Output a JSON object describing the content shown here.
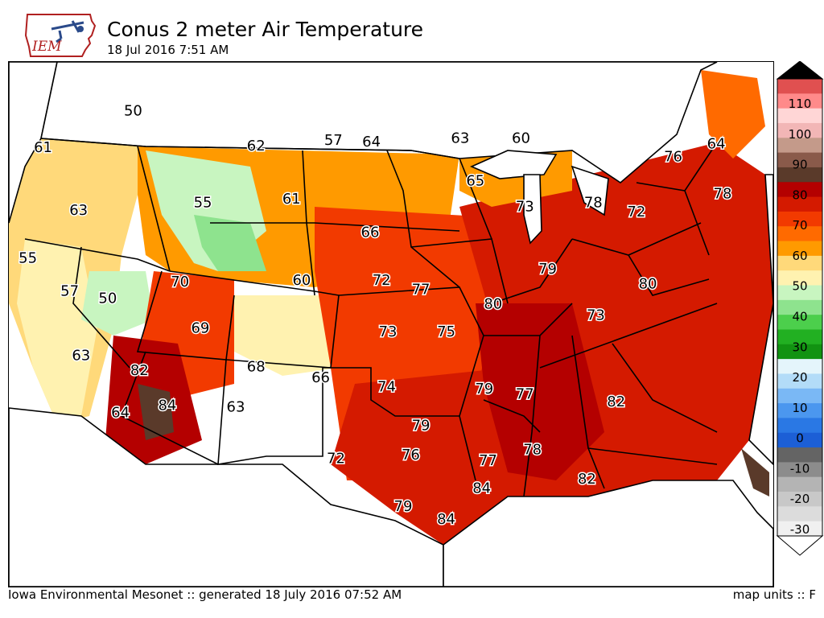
{
  "header": {
    "logo_text": "IEM",
    "title": "Conus 2 meter Air Temperature",
    "subtitle": "18 Jul 2016 7:51 AM"
  },
  "footer": {
    "credit": "Iowa Environmental Mesonet :: generated 18 July 2016 07:52 AM",
    "units": "map units :: F"
  },
  "colors": {
    "ocean_land": "#ffffff",
    "boundary": "#000000"
  },
  "legend": {
    "units": "F",
    "ticks": [
      "110",
      "100",
      "90",
      "80",
      "70",
      "60",
      "50",
      "40",
      "30",
      "20",
      "10",
      "0",
      "-10",
      "-20",
      "-30"
    ],
    "bands": [
      {
        "value": "below -30",
        "color": "#ffffff"
      },
      {
        "value": "-30",
        "color": "#f0f0f0"
      },
      {
        "value": "-25",
        "color": "#dcdcdc"
      },
      {
        "value": "-20",
        "color": "#c8c8c8"
      },
      {
        "value": "-15",
        "color": "#b4b4b4"
      },
      {
        "value": "-10",
        "color": "#8c8c8c"
      },
      {
        "value": "-5",
        "color": "#646464"
      },
      {
        "value": "0",
        "color": "#1c5fd6"
      },
      {
        "value": "5",
        "color": "#2a78e4"
      },
      {
        "value": "10",
        "color": "#4b97ef"
      },
      {
        "value": "15",
        "color": "#7ab8f5"
      },
      {
        "value": "20",
        "color": "#b3dcf8"
      },
      {
        "value": "25",
        "color": "#e4f5fb"
      },
      {
        "value": "30",
        "color": "#129312"
      },
      {
        "value": "35",
        "color": "#22b022"
      },
      {
        "value": "40",
        "color": "#4ccf4c"
      },
      {
        "value": "45",
        "color": "#8ee38e"
      },
      {
        "value": "50",
        "color": "#c8f5c0"
      },
      {
        "value": "55",
        "color": "#fff2b0"
      },
      {
        "value": "60",
        "color": "#ffd97a"
      },
      {
        "value": "65",
        "color": "#ff9a00"
      },
      {
        "value": "70",
        "color": "#ff6a00"
      },
      {
        "value": "75",
        "color": "#f23a00"
      },
      {
        "value": "80",
        "color": "#d41a00"
      },
      {
        "value": "85",
        "color": "#b40000"
      },
      {
        "value": "90",
        "color": "#5a3a2a"
      },
      {
        "value": "95",
        "color": "#8a5a4a"
      },
      {
        "value": "100",
        "color": "#c49a8a"
      },
      {
        "value": "105",
        "color": "#f2b6b6"
      },
      {
        "value": "110",
        "color": "#ffd6d6"
      },
      {
        "value": "115",
        "color": "#ff8a8a"
      },
      {
        "value": "120",
        "color": "#e05050"
      },
      {
        "value": "above",
        "color": "#000000"
      }
    ]
  },
  "regions": [
    {
      "name": "pacific-northwest",
      "temp_f": 61,
      "color": "#ffd97a"
    },
    {
      "name": "california-coast",
      "temp_f": 57,
      "color": "#fff2b0"
    },
    {
      "name": "northern-rockies",
      "temp_f": 50,
      "color": "#c8f5c0"
    },
    {
      "name": "northern-plains",
      "temp_f": 62,
      "color": "#ff9a00"
    },
    {
      "name": "upper-midwest",
      "temp_f": 65,
      "color": "#ff6a00"
    },
    {
      "name": "central-plains",
      "temp_f": 72,
      "color": "#f23a00"
    },
    {
      "name": "southwest-desert",
      "temp_f": 84,
      "color": "#5a3a2a"
    },
    {
      "name": "southeast",
      "temp_f": 79,
      "color": "#b40000"
    },
    {
      "name": "northeast",
      "temp_f": 78,
      "color": "#d41a00"
    },
    {
      "name": "florida-south",
      "temp_f": 90,
      "color": "#5a3a2a"
    }
  ],
  "station_labels": [
    {
      "value": "61",
      "lon": -123.6,
      "lat": 46.6
    },
    {
      "value": "50",
      "lon": -116.5,
      "lat": 48.6
    },
    {
      "value": "55",
      "lon": -124.8,
      "lat": 40.6
    },
    {
      "value": "63",
      "lon": -120.8,
      "lat": 43.2
    },
    {
      "value": "57",
      "lon": -121.5,
      "lat": 38.8
    },
    {
      "value": "50",
      "lon": -118.5,
      "lat": 38.4
    },
    {
      "value": "63",
      "lon": -120.6,
      "lat": 35.3
    },
    {
      "value": "82",
      "lon": -116.0,
      "lat": 34.5
    },
    {
      "value": "64",
      "lon": -117.5,
      "lat": 32.2
    },
    {
      "value": "84",
      "lon": -113.8,
      "lat": 32.6
    },
    {
      "value": "70",
      "lon": -112.8,
      "lat": 39.3
    },
    {
      "value": "69",
      "lon": -111.2,
      "lat": 36.8
    },
    {
      "value": "55",
      "lon": -111.0,
      "lat": 43.6
    },
    {
      "value": "62",
      "lon": -106.8,
      "lat": 46.7
    },
    {
      "value": "61",
      "lon": -104.0,
      "lat": 43.8
    },
    {
      "value": "60",
      "lon": -103.2,
      "lat": 39.4
    },
    {
      "value": "68",
      "lon": -106.8,
      "lat": 34.7
    },
    {
      "value": "63",
      "lon": -108.4,
      "lat": 32.5
    },
    {
      "value": "66",
      "lon": -101.7,
      "lat": 34.1
    },
    {
      "value": "57",
      "lon": -100.7,
      "lat": 47.0
    },
    {
      "value": "64",
      "lon": -97.7,
      "lat": 46.9
    },
    {
      "value": "66",
      "lon": -97.8,
      "lat": 42.0
    },
    {
      "value": "72",
      "lon": -96.9,
      "lat": 39.4
    },
    {
      "value": "73",
      "lon": -96.4,
      "lat": 36.6
    },
    {
      "value": "74",
      "lon": -96.5,
      "lat": 33.6
    },
    {
      "value": "72",
      "lon": -100.5,
      "lat": 29.7
    },
    {
      "value": "79",
      "lon": -93.8,
      "lat": 31.5
    },
    {
      "value": "76",
      "lon": -94.6,
      "lat": 29.9
    },
    {
      "value": "79",
      "lon": -95.2,
      "lat": 27.1
    },
    {
      "value": "84",
      "lon": -91.8,
      "lat": 26.4
    },
    {
      "value": "84",
      "lon": -89.0,
      "lat": 28.1
    },
    {
      "value": "77",
      "lon": -93.8,
      "lat": 38.9
    },
    {
      "value": "75",
      "lon": -91.8,
      "lat": 36.6
    },
    {
      "value": "63",
      "lon": -90.7,
      "lat": 47.1
    },
    {
      "value": "65",
      "lon": -89.5,
      "lat": 44.8
    },
    {
      "value": "60",
      "lon": -85.9,
      "lat": 47.1
    },
    {
      "value": "73",
      "lon": -85.6,
      "lat": 43.4
    },
    {
      "value": "80",
      "lon": -88.1,
      "lat": 38.1
    },
    {
      "value": "79",
      "lon": -83.8,
      "lat": 40.0
    },
    {
      "value": "79",
      "lon": -88.8,
      "lat": 33.5
    },
    {
      "value": "77",
      "lon": -85.6,
      "lat": 33.2
    },
    {
      "value": "77",
      "lon": -88.5,
      "lat": 29.6
    },
    {
      "value": "78",
      "lon": -85.0,
      "lat": 30.2
    },
    {
      "value": "73",
      "lon": -80.0,
      "lat": 37.5
    },
    {
      "value": "82",
      "lon": -78.4,
      "lat": 32.8
    },
    {
      "value": "82",
      "lon": -80.7,
      "lat": 28.6
    },
    {
      "value": "78",
      "lon": -80.2,
      "lat": 43.6
    },
    {
      "value": "72",
      "lon": -76.8,
      "lat": 43.1
    },
    {
      "value": "80",
      "lon": -75.9,
      "lat": 39.2
    },
    {
      "value": "76",
      "lon": -73.9,
      "lat": 46.1
    },
    {
      "value": "64",
      "lon": -70.5,
      "lat": 46.8
    },
    {
      "value": "78",
      "lon": -70.0,
      "lat": 44.1
    }
  ]
}
